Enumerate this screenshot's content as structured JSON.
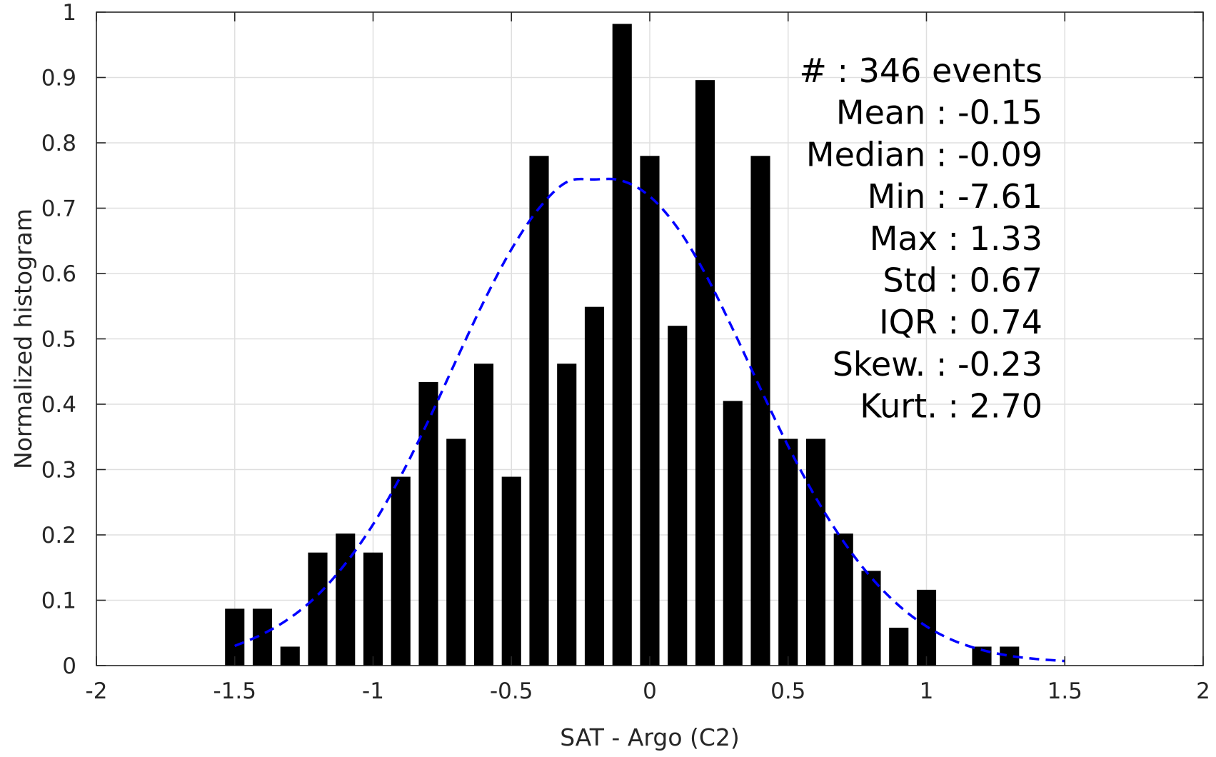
{
  "chart_data": {
    "type": "bar",
    "xlabel": "SAT - Argo (C2)",
    "ylabel": "Normalized histogram",
    "xlim": [
      -2,
      2
    ],
    "ylim": [
      0,
      1
    ],
    "x_ticks": [
      -2,
      -1.5,
      -1,
      -0.5,
      0,
      0.5,
      1,
      1.5,
      2
    ],
    "x_tick_labels": [
      "-2",
      "-1.5",
      "-1",
      "-0.5",
      "0",
      "0.5",
      "1",
      "1.5",
      "2"
    ],
    "y_ticks": [
      0,
      0.1,
      0.2,
      0.3,
      0.4,
      0.5,
      0.6,
      0.7,
      0.8,
      0.9,
      1
    ],
    "y_tick_labels": [
      "0",
      "0.1",
      "0.2",
      "0.3",
      "0.4",
      "0.5",
      "0.6",
      "0.7",
      "0.8",
      "0.9",
      "1"
    ],
    "grid": true,
    "bar_width": 0.07,
    "series": [
      {
        "type": "bar",
        "color": "#000000",
        "x": [
          -1.5,
          -1.4,
          -1.3,
          -1.2,
          -1.1,
          -1.0,
          -0.9,
          -0.8,
          -0.7,
          -0.6,
          -0.5,
          -0.4,
          -0.3,
          -0.2,
          -0.1,
          0.0,
          0.1,
          0.2,
          0.3,
          0.4,
          0.5,
          0.6,
          0.7,
          0.8,
          0.9,
          1.0,
          1.2,
          1.3
        ],
        "values": [
          0.087,
          0.087,
          0.029,
          0.173,
          0.202,
          0.173,
          0.289,
          0.434,
          0.347,
          0.462,
          0.289,
          0.78,
          0.462,
          0.549,
          0.982,
          0.78,
          0.52,
          0.896,
          0.405,
          0.78,
          0.347,
          0.347,
          0.202,
          0.145,
          0.058,
          0.116,
          0.029,
          0.029
        ]
      },
      {
        "type": "line",
        "style": "dashed",
        "color": "#0000ff",
        "x": [
          -1.5,
          -1.4,
          -1.3,
          -1.2,
          -1.1,
          -1.0,
          -0.9,
          -0.8,
          -0.7,
          -0.6,
          -0.5,
          -0.4,
          -0.3,
          -0.2,
          -0.1,
          0.0,
          0.1,
          0.2,
          0.3,
          0.4,
          0.5,
          0.6,
          0.7,
          0.8,
          0.9,
          1.0,
          1.1,
          1.2,
          1.3,
          1.4,
          1.5
        ],
        "values": [
          0.03,
          0.048,
          0.073,
          0.108,
          0.156,
          0.216,
          0.29,
          0.375,
          0.467,
          0.557,
          0.637,
          0.7,
          0.74,
          0.744,
          0.742,
          0.718,
          0.67,
          0.6,
          0.515,
          0.424,
          0.336,
          0.257,
          0.19,
          0.135,
          0.092,
          0.06,
          0.038,
          0.024,
          0.015,
          0.01,
          0.007
        ]
      }
    ],
    "annotations": [
      "#  : 346 events",
      "Mean : -0.15",
      "Median : -0.09",
      "Min : -7.61",
      "Max : 1.33",
      "Std : 0.67",
      "IQR : 0.74",
      "Skew. : -0.23",
      "Kurt. : 2.70"
    ]
  }
}
